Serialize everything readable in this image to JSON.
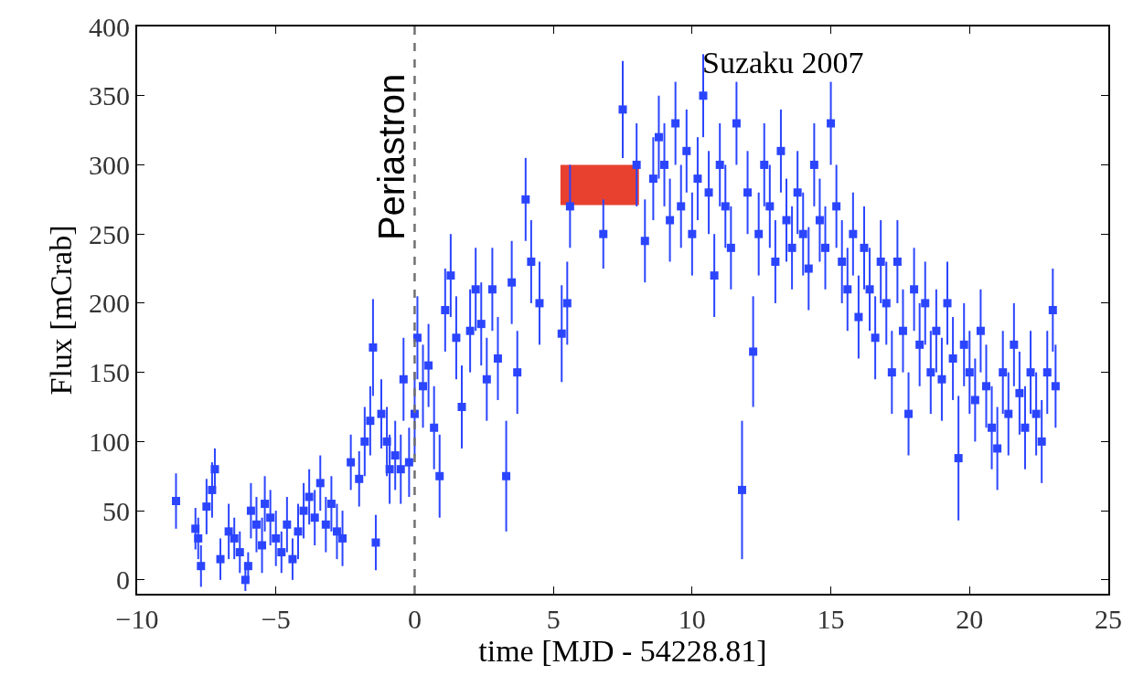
{
  "chart_data": {
    "type": "scatter",
    "xlabel": "time [MJD - 54228.81]",
    "ylabel": "Flux [mCrab]",
    "xlim": [
      -10,
      25
    ],
    "xticks": [
      {
        "value": -10,
        "label": "−10"
      },
      {
        "value": -5,
        "label": "−5"
      },
      0,
      5,
      10,
      15,
      20,
      25
    ],
    "ylim": [
      -10,
      400
    ],
    "yticks": [
      0,
      50,
      100,
      150,
      200,
      250,
      300,
      350,
      400
    ],
    "marker": "square",
    "series": [
      {
        "color": "#2b45ff",
        "x": [
          -8.6,
          -7.9,
          -7.8,
          -7.7,
          -7.5,
          -7.3,
          -7.2,
          -7.0,
          -6.7,
          -6.5,
          -6.3,
          -6.1,
          -6.0,
          -5.9,
          -5.7,
          -5.5,
          -5.4,
          -5.2,
          -5.0,
          -4.8,
          -4.6,
          -4.4,
          -4.2,
          -4.0,
          -3.8,
          -3.6,
          -3.4,
          -3.2,
          -3.0,
          -2.8,
          -2.6,
          -2.3,
          -2.0,
          -1.8,
          -1.6,
          -1.5,
          -1.4,
          -1.2,
          -1.0,
          -0.9,
          -0.7,
          -0.5,
          -0.4,
          -0.2,
          0.0,
          0.1,
          0.3,
          0.5,
          0.7,
          0.9,
          1.1,
          1.3,
          1.5,
          1.7,
          2.0,
          2.2,
          2.4,
          2.6,
          2.8,
          3.0,
          3.3,
          3.5,
          3.7,
          4.0,
          4.2,
          4.5,
          5.3,
          5.5,
          5.6,
          6.8,
          7.5,
          8.0,
          8.3,
          8.6,
          8.8,
          9.0,
          9.2,
          9.4,
          9.6,
          9.8,
          10.0,
          10.2,
          10.4,
          10.6,
          10.8,
          11.0,
          11.2,
          11.4,
          11.6,
          11.8,
          12.0,
          12.2,
          12.4,
          12.6,
          12.8,
          13.0,
          13.2,
          13.4,
          13.6,
          13.8,
          14.0,
          14.2,
          14.4,
          14.6,
          14.8,
          15.0,
          15.2,
          15.4,
          15.6,
          15.8,
          16.0,
          16.2,
          16.4,
          16.6,
          16.8,
          17.0,
          17.2,
          17.4,
          17.6,
          17.8,
          18.0,
          18.2,
          18.4,
          18.6,
          18.8,
          19.0,
          19.2,
          19.4,
          19.6,
          19.8,
          20.0,
          20.2,
          20.4,
          20.6,
          20.8,
          21.0,
          21.2,
          21.4,
          21.6,
          21.8,
          22.0,
          22.2,
          22.4,
          22.6,
          22.8,
          23.0,
          23.1
        ],
        "values": [
          57,
          37,
          30,
          10,
          53,
          65,
          80,
          15,
          35,
          30,
          20,
          0,
          10,
          50,
          40,
          25,
          55,
          45,
          30,
          20,
          40,
          15,
          35,
          50,
          60,
          45,
          70,
          40,
          55,
          35,
          30,
          85,
          73,
          100,
          115,
          168,
          27,
          120,
          100,
          80,
          90,
          80,
          145,
          85,
          120,
          175,
          140,
          155,
          110,
          75,
          195,
          220,
          175,
          125,
          180,
          210,
          185,
          145,
          210,
          160,
          75,
          215,
          150,
          275,
          230,
          200,
          178,
          200,
          270,
          250,
          340,
          300,
          245,
          290,
          320,
          300,
          260,
          330,
          270,
          310,
          250,
          290,
          350,
          280,
          220,
          300,
          270,
          240,
          330,
          65,
          280,
          165,
          250,
          300,
          270,
          230,
          310,
          260,
          240,
          280,
          250,
          225,
          300,
          260,
          240,
          330,
          270,
          230,
          210,
          250,
          190,
          240,
          210,
          175,
          230,
          200,
          150,
          230,
          180,
          120,
          210,
          170,
          200,
          150,
          180,
          145,
          200,
          160,
          88,
          170,
          150,
          130,
          180,
          140,
          110,
          95,
          150,
          120,
          170,
          135,
          110,
          150,
          120,
          100,
          150,
          195,
          140
        ],
        "errors": [
          20,
          15,
          15,
          15,
          20,
          20,
          15,
          15,
          20,
          15,
          15,
          8,
          10,
          20,
          20,
          20,
          20,
          20,
          20,
          15,
          20,
          15,
          20,
          20,
          20,
          20,
          20,
          20,
          20,
          20,
          20,
          20,
          20,
          25,
          25,
          35,
          20,
          25,
          25,
          25,
          25,
          25,
          30,
          25,
          30,
          30,
          30,
          30,
          30,
          30,
          30,
          30,
          30,
          30,
          30,
          30,
          30,
          30,
          30,
          30,
          40,
          30,
          30,
          30,
          30,
          30,
          35,
          30,
          30,
          25,
          35,
          30,
          30,
          30,
          30,
          30,
          30,
          30,
          30,
          30,
          30,
          30,
          30,
          30,
          30,
          30,
          30,
          30,
          30,
          50,
          30,
          40,
          30,
          30,
          30,
          30,
          30,
          30,
          30,
          30,
          30,
          30,
          30,
          30,
          30,
          30,
          30,
          30,
          30,
          30,
          30,
          30,
          30,
          30,
          30,
          30,
          30,
          30,
          30,
          30,
          30,
          30,
          30,
          30,
          30,
          30,
          30,
          30,
          45,
          30,
          30,
          30,
          30,
          30,
          30,
          30,
          30,
          30,
          30,
          30,
          30,
          30,
          30,
          30,
          30,
          30,
          30
        ]
      },
      {
        "type": "bar",
        "color": "#e8412f",
        "x": [
          6.67
        ],
        "base": [
          271
        ],
        "values": [
          29
        ]
      }
    ],
    "ref_lines": [
      {
        "axis": "x",
        "value": 0,
        "label": "Periastron",
        "color": "#707070",
        "line_style": "dashed"
      }
    ],
    "annotations": [
      "Suzaku 2007"
    ]
  }
}
